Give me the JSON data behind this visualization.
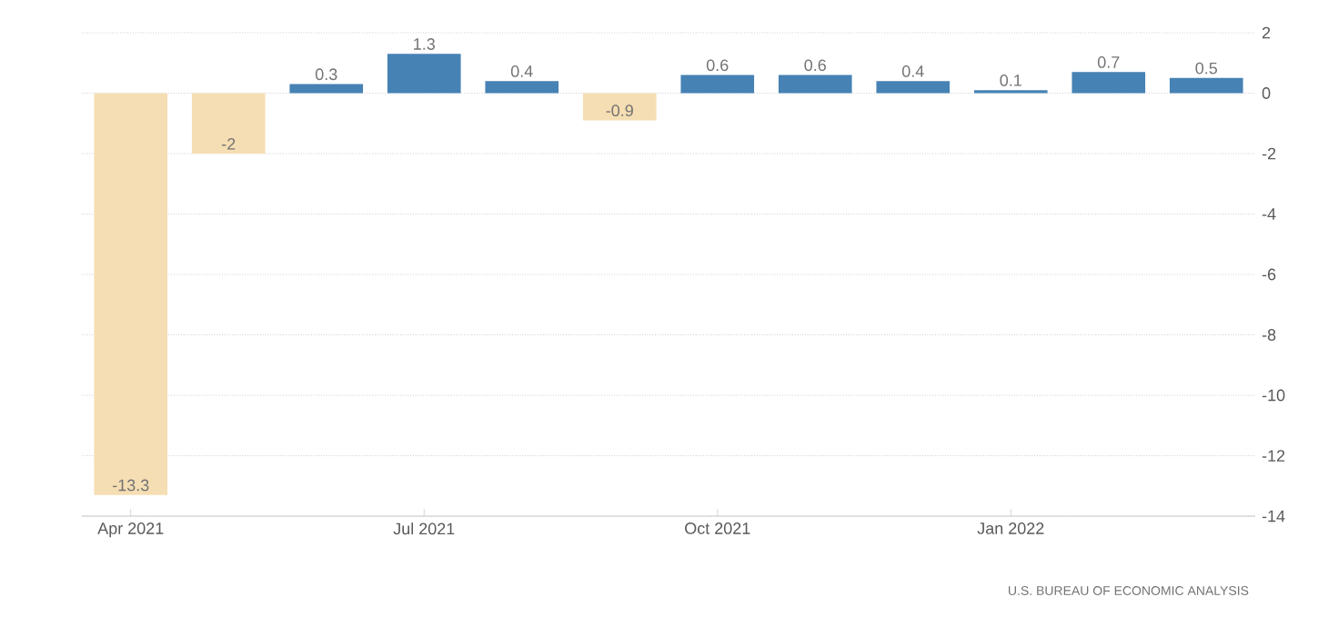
{
  "chart_data": {
    "type": "bar",
    "categories": [
      "Apr 2021",
      null,
      null,
      "Jul 2021",
      null,
      null,
      "Oct 2021",
      null,
      null,
      "Jan 2022",
      null,
      null
    ],
    "values": [
      -13.3,
      -2,
      0.3,
      1.3,
      0.4,
      -0.9,
      0.6,
      0.6,
      0.4,
      0.1,
      0.7,
      0.5
    ],
    "colors": [
      "#f5deb3",
      "#f5deb3",
      "#4682b4",
      "#4682b4",
      "#4682b4",
      "#f5deb3",
      "#4682b4",
      "#4682b4",
      "#4682b4",
      "#4682b4",
      "#4682b4",
      "#4682b4"
    ],
    "ylim": [
      -14,
      2
    ],
    "yticks": [
      2,
      0,
      -2,
      -4,
      -6,
      -8,
      -10,
      -12,
      -14
    ],
    "grid": "y",
    "data_labels": true,
    "annotations": [
      "U.S. BUREAU OF ECONOMIC ANALYSIS"
    ]
  }
}
